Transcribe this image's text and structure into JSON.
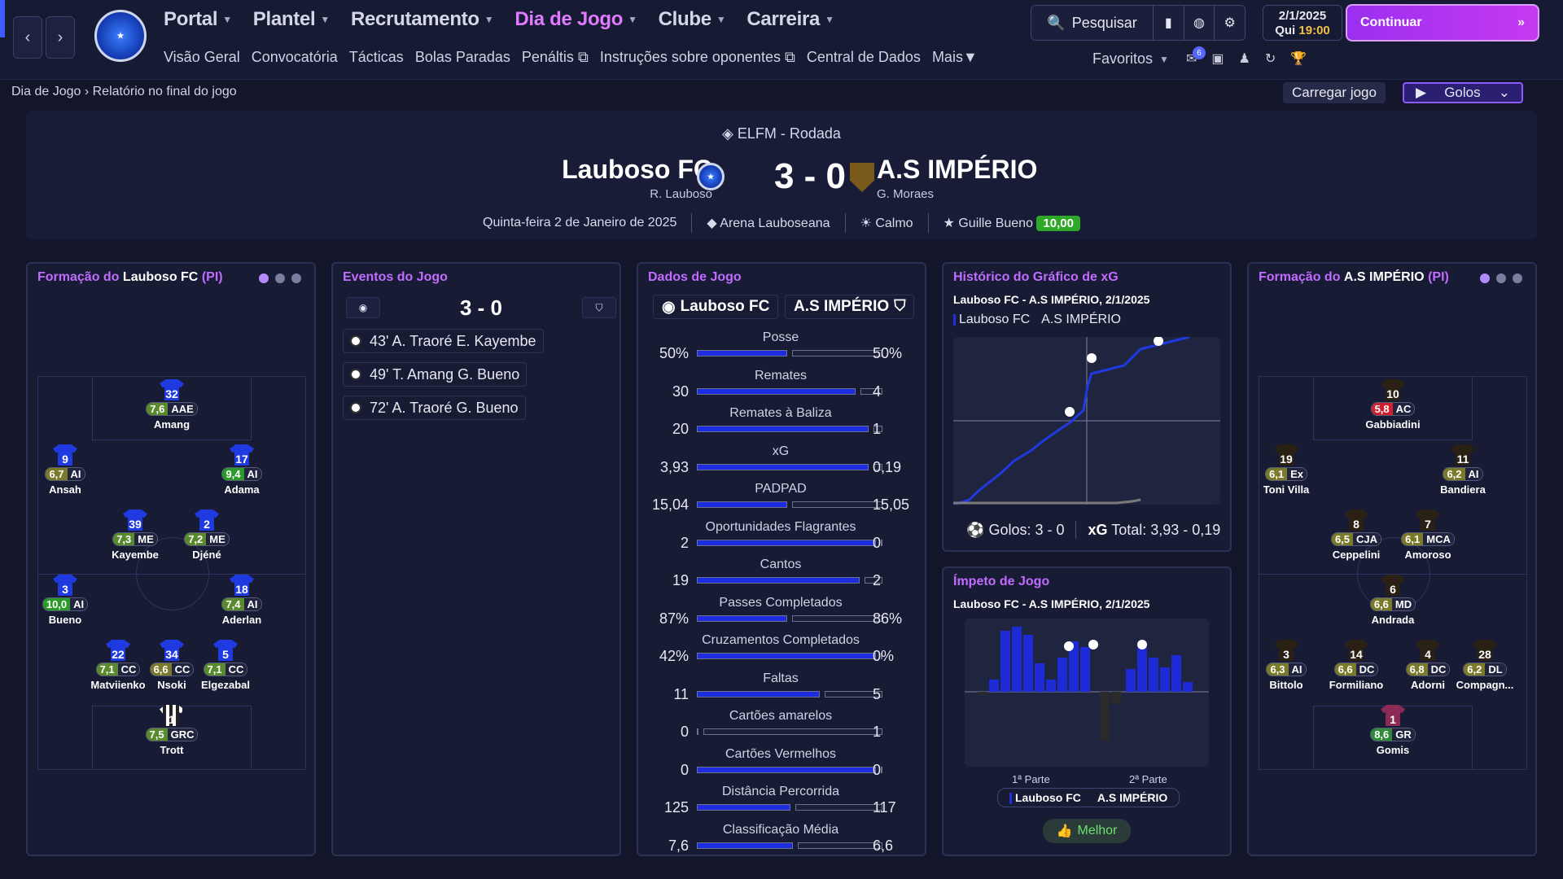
{
  "nav": {
    "main": [
      "Portal",
      "Plantel",
      "Recrutamento",
      "Dia de Jogo",
      "Clube",
      "Carreira"
    ],
    "active_index": 3,
    "sub": [
      "Visão Geral",
      "Convocatória",
      "Tácticas",
      "Bolas Paradas",
      "Penáltis",
      "Instruções sobre oponentes",
      "Central de Dados",
      "Mais"
    ],
    "search": "Pesquisar",
    "date": "2/1/2025",
    "day": "Qui",
    "time": "19:00",
    "continue": "Continuar",
    "favorites": "Favoritos",
    "badge": "6"
  },
  "breadcrumb": {
    "parent": "Dia de Jogo",
    "current": "Relatório no final do jogo"
  },
  "actions": {
    "load": "Carregar jogo",
    "goals": "Golos"
  },
  "match": {
    "competition": "ELFM - Rodada",
    "home": "Lauboso FC",
    "home_manager": "R. Lauboso",
    "away": "A.S IMPÉRIO",
    "away_manager": "G. Moraes",
    "score": "3 - 0",
    "date": "Quinta-feira 2 de Janeiro de 2025",
    "stadium": "Arena Lauboseana",
    "weather": "Calmo",
    "potm": "Guille Bueno",
    "potm_rating": "10,00"
  },
  "home_formation": {
    "title_prefix": "Formação do",
    "team": "Lauboso FC",
    "suffix": "(PI)",
    "players": [
      {
        "num": "32",
        "rating": "7,6",
        "pos": "AAE",
        "name": "Amang",
        "rc": "g"
      },
      {
        "num": "9",
        "rating": "6,7",
        "pos": "AI",
        "name": "Ansah",
        "rc": "o"
      },
      {
        "num": "17",
        "rating": "9,4",
        "pos": "AI",
        "name": "Adama",
        "rc": "gg"
      },
      {
        "num": "39",
        "rating": "7,3",
        "pos": "ME",
        "name": "Kayembe",
        "rc": "g"
      },
      {
        "num": "2",
        "rating": "7,2",
        "pos": "ME",
        "name": "Djéné",
        "rc": "g"
      },
      {
        "num": "3",
        "rating": "10,0",
        "pos": "AI",
        "name": "Bueno",
        "rc": "gg"
      },
      {
        "num": "18",
        "rating": "7,4",
        "pos": "AI",
        "name": "Aderlan",
        "rc": "g"
      },
      {
        "num": "22",
        "rating": "7,1",
        "pos": "CC",
        "name": "Matviienko",
        "rc": "g"
      },
      {
        "num": "34",
        "rating": "6,6",
        "pos": "CC",
        "name": "Nsoki",
        "rc": "o"
      },
      {
        "num": "5",
        "rating": "7,1",
        "pos": "CC",
        "name": "Elgezabal",
        "rc": "g"
      },
      {
        "num": "1",
        "rating": "7,5",
        "pos": "GRC",
        "name": "Trott",
        "rc": "g"
      }
    ]
  },
  "events": {
    "title": "Eventos do Jogo",
    "score": "3 - 0",
    "items": [
      "43' A. Traoré E. Kayembe",
      "49' T. Amang G. Bueno",
      "72' A. Traoré G. Bueno"
    ]
  },
  "stats": {
    "title": "Dados de Jogo",
    "home": "Lauboso FC",
    "away": "A.S IMPÉRIO",
    "rows": [
      {
        "label": "Posse",
        "h": "50%",
        "a": "50%",
        "hf": 0.5
      },
      {
        "label": "Remates",
        "h": "30",
        "a": "4",
        "hf": 0.88
      },
      {
        "label": "Remates à Baliza",
        "h": "20",
        "a": "1",
        "hf": 0.95
      },
      {
        "label": "xG",
        "h": "3,93",
        "a": "0,19",
        "hf": 0.95
      },
      {
        "label": "PADPAD",
        "h": "15,04",
        "a": "15,05",
        "hf": 0.5
      },
      {
        "label": "Oportunidades Flagrantes",
        "h": "2",
        "a": "0",
        "hf": 0.99
      },
      {
        "label": "Cantos",
        "h": "19",
        "a": "2",
        "hf": 0.9
      },
      {
        "label": "Passes Completados",
        "h": "87%",
        "a": "86%",
        "hf": 0.5
      },
      {
        "label": "Cruzamentos Completados",
        "h": "42%",
        "a": "0%",
        "hf": 0.99
      },
      {
        "label": "Faltas",
        "h": "11",
        "a": "5",
        "hf": 0.68
      },
      {
        "label": "Cartões amarelos",
        "h": "0",
        "a": "1",
        "hf": 0.01
      },
      {
        "label": "Cartões Vermelhos",
        "h": "0",
        "a": "0",
        "hf": 0.99
      },
      {
        "label": "Distância Percorrida",
        "h": "125",
        "a": "117",
        "hf": 0.52
      },
      {
        "label": "Classificação Média",
        "h": "7,6",
        "a": "6,6",
        "hf": 0.53
      }
    ]
  },
  "xg": {
    "title": "Histórico do Gráfico de xG",
    "subtitle": "Lauboso FC - A.S IMPÉRIO, 2/1/2025",
    "legend_home": "Lauboso FC",
    "legend_away": "A.S IMPÉRIO",
    "goals_label": "Golos: 3 - 0",
    "xg_label": "xG",
    "xg_total": "Total: 3,93 - 0,19"
  },
  "momentum": {
    "title": "Ímpeto de Jogo",
    "subtitle": "Lauboso FC - A.S IMPÉRIO, 2/1/2025",
    "h1": "1ª Parte",
    "h2": "2ª Parte",
    "legend_home": "Lauboso FC",
    "legend_away": "A.S IMPÉRIO",
    "best": "Melhor"
  },
  "away_formation": {
    "title_prefix": "Formação do",
    "team": "A.S IMPÉRIO",
    "suffix": "(PI)",
    "players": [
      {
        "num": "10",
        "rating": "5,8",
        "pos": "AC",
        "name": "Gabbiadini",
        "rc": "red"
      },
      {
        "num": "19",
        "rating": "6,1",
        "pos": "Ex",
        "name": "Toni Villa",
        "rc": "o"
      },
      {
        "num": "11",
        "rating": "6,2",
        "pos": "AI",
        "name": "Bandiera",
        "rc": "o"
      },
      {
        "num": "8",
        "rating": "6,5",
        "pos": "CJA",
        "name": "Ceppelini",
        "rc": "o"
      },
      {
        "num": "7",
        "rating": "6,1",
        "pos": "MCA",
        "name": "Amoroso",
        "rc": "o"
      },
      {
        "num": "6",
        "rating": "6,6",
        "pos": "MD",
        "name": "Andrada",
        "rc": "o"
      },
      {
        "num": "3",
        "rating": "6,3",
        "pos": "AI",
        "name": "Bittolo",
        "rc": "o"
      },
      {
        "num": "14",
        "rating": "6,6",
        "pos": "DC",
        "name": "Formiliano",
        "rc": "o"
      },
      {
        "num": "4",
        "rating": "6,8",
        "pos": "DC",
        "name": "Adorni",
        "rc": "o"
      },
      {
        "num": "28",
        "rating": "6,2",
        "pos": "DL",
        "name": "Compagn...",
        "rc": "o"
      },
      {
        "num": "1",
        "rating": "8,6",
        "pos": "GR",
        "name": "Gomis",
        "rc": "gr"
      }
    ]
  }
}
